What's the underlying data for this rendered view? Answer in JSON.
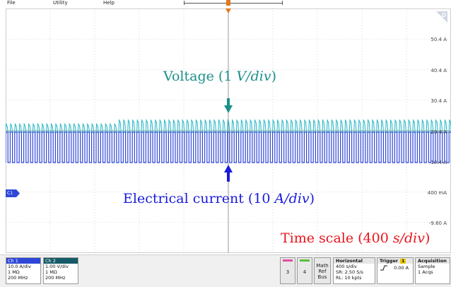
{
  "menu": {
    "file": "File",
    "utility": "Utility",
    "help": "Help"
  },
  "annotations": {
    "voltage": {
      "prefix": "Voltage (1 ",
      "unit": "V/div",
      "suffix": ")",
      "color": "#1b8f8a"
    },
    "current": {
      "prefix": "Electrical current (10 ",
      "unit": "A/div",
      "suffix": ")",
      "color": "#1a1adb"
    },
    "timescale": {
      "prefix": "Time scale (400 ",
      "unit": "s/div",
      "suffix": ")",
      "color": "#e8141c"
    }
  },
  "scale_labels": [
    "50.4 A",
    "40.4 A",
    "30.4 A",
    "20.4 A",
    "10.4 A",
    "400 mA",
    "-9.60 A"
  ],
  "channel_marker": "C1",
  "colors": {
    "ch1": "#2f47d8",
    "ch2": "#1fb3c4",
    "ch2_header": "#155a66",
    "grid": "#bdbdbd"
  },
  "channels": [
    {
      "name": "Ch 1",
      "scale": "10.0 A/div",
      "impedance": "1 MΩ",
      "bandwidth": "200 MHz"
    },
    {
      "name": "Ch 2",
      "scale": "1.00 V/div",
      "impedance": "1 MΩ",
      "bandwidth": "200 MHz"
    }
  ],
  "buttons": {
    "ch3": "3",
    "ch4": "4",
    "math_ref_bus": [
      "Math",
      "Ref",
      "Bus"
    ]
  },
  "horizontal": {
    "title": "Horizontal",
    "scale": "400 s/div",
    "sample_rate": "SR: 2.50 S/s",
    "record_length": "RL: 10 kpts"
  },
  "trigger": {
    "title": "Trigger",
    "channel": "1",
    "level": "0.00 A"
  },
  "acquisition": {
    "title": "Acquisition",
    "mode": "Sample",
    "acqs": "1 Acqs"
  },
  "icons": {
    "corner": "zoom-corner-icon",
    "slope": "rising-edge-icon",
    "arrow_down": "arrow-down-icon",
    "arrow_up": "arrow-up-icon",
    "trigger_marker": "trigger-position-marker-icon"
  }
}
